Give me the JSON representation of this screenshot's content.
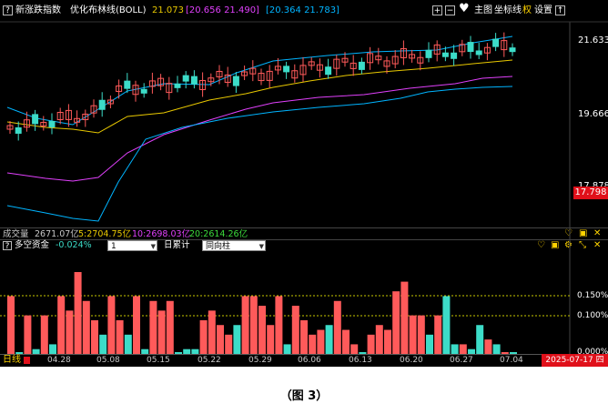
{
  "header": {
    "title": "新涨跌指数",
    "indicator": "优化布林线(BOLL)",
    "mid_value": "21.073",
    "upper_values": "[20.656  21.490]",
    "lower_values": "[20.364  21.783]",
    "buttons": {
      "add": "+",
      "minus": "−",
      "main": "主图",
      "coord": "坐标线",
      "power": "权",
      "settings": "设置",
      "up": "↑"
    }
  },
  "price_axis": {
    "high": "21.633",
    "mid": "19.666",
    "low": "17.878",
    "current": "17.798"
  },
  "volume_header": {
    "label": "成交量",
    "total": "2671.07亿",
    "ma5": "5:2704.75亿",
    "ma10": "10:2698.03亿",
    "ma20": "20:2614.26亿"
  },
  "capital_header": {
    "label": "多空资金",
    "value": "-0.024%",
    "select1": "1",
    "mode_label": "日累计",
    "select2": "同向柱"
  },
  "capital_axis": {
    "t1": "0.150%",
    "t2": "0.100%",
    "t3": "0.000%"
  },
  "bottom_bar": {
    "period": "日线",
    "dates": [
      "04.28",
      "05.08",
      "05.15",
      "05.22",
      "05.29",
      "06.06",
      "06.13",
      "06.20",
      "06.27",
      "07.04"
    ],
    "current_date": "2025-07-17 四"
  },
  "caption": "（图 3）",
  "colors": {
    "up": "#ff5a5a",
    "down": "#3cdcc8",
    "boll_up": "#00b4ff",
    "boll_mid": "#e8c800",
    "boll_low": "#e040fb"
  },
  "chart_data": {
    "type": "bar",
    "capital": {
      "up_flags": [
        1,
        0,
        1,
        0,
        1,
        0,
        1,
        1,
        1,
        1,
        1,
        0,
        1,
        1,
        0,
        1,
        0,
        1,
        1,
        1,
        0,
        0,
        0,
        1,
        1,
        1,
        1,
        0,
        1,
        1,
        1,
        1,
        1,
        0,
        1,
        1,
        1,
        1,
        0,
        1,
        1,
        1,
        0,
        1,
        1,
        1,
        1,
        1,
        1,
        1,
        0,
        1,
        0,
        0,
        1,
        0,
        0,
        1,
        0,
        1,
        0
      ],
      "values": [
        0.12,
        0.0,
        0.08,
        0.01,
        0.08,
        0.02,
        0.12,
        0.09,
        0.17,
        0.11,
        0.07,
        0.04,
        0.12,
        0.07,
        0.04,
        0.12,
        0.01,
        0.11,
        0.09,
        0.11,
        0.0,
        0.01,
        0.01,
        0.07,
        0.09,
        0.06,
        0.04,
        0.06,
        0.12,
        0.12,
        0.1,
        0.06,
        0.12,
        0.02,
        0.1,
        0.07,
        0.04,
        0.05,
        0.06,
        0.11,
        0.05,
        0.02,
        0.0,
        0.04,
        0.06,
        0.05,
        0.13,
        0.15,
        0.08,
        0.08,
        0.04,
        0.08,
        0.12,
        0.02,
        0.02,
        0.01,
        0.06,
        0.03,
        0.02,
        0.0,
        0.0
      ]
    }
  }
}
